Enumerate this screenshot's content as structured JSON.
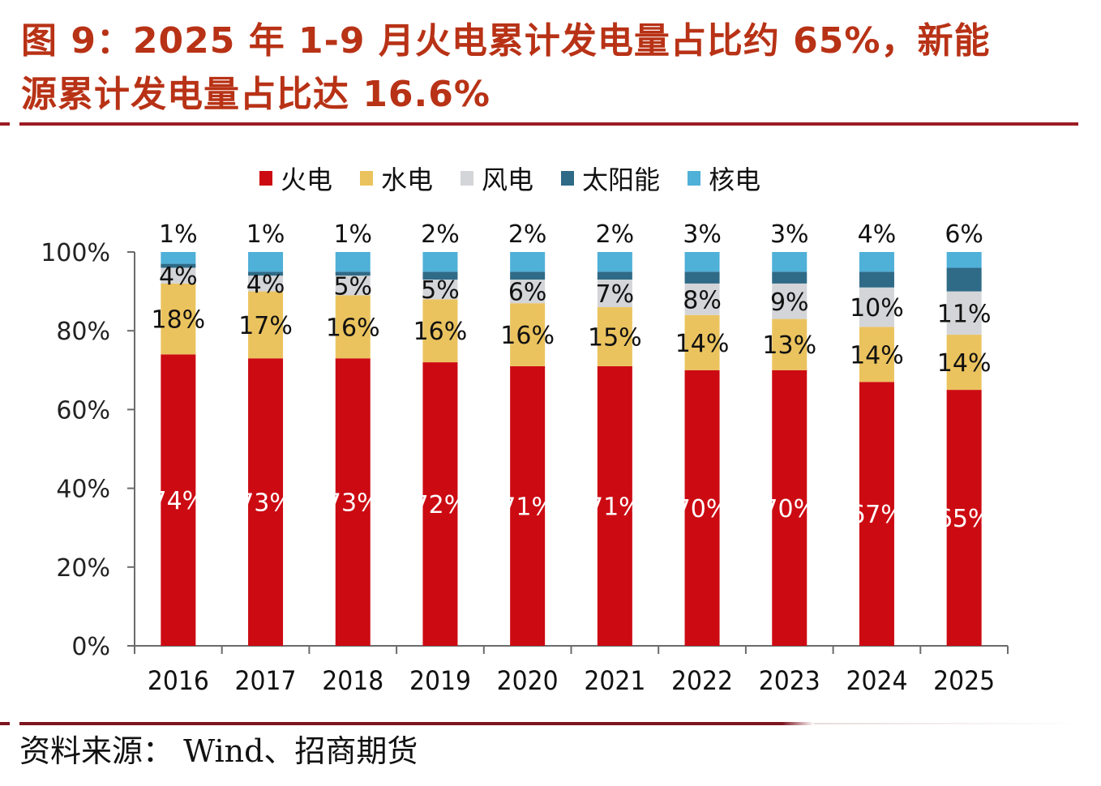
{
  "header": {
    "title_line1": "图 9：2025 年 1-9 月火电累计发电量占比约 65%，新能",
    "title_line2": "源累计发电量占比达 16.6%"
  },
  "footer": {
    "source": "资料来源：  Wind、招商期货"
  },
  "colors": {
    "title": "#b83216",
    "rule": "#9c1b24",
    "thermal": "#cc0a12",
    "hydro": "#ebc35e",
    "wind": "#d4d5d8",
    "solar": "#2f6a87",
    "nuclear": "#4fb0d8"
  },
  "chart_data": {
    "type": "bar",
    "stacked": true,
    "title": "",
    "xlabel": "",
    "ylabel": "",
    "ylim": [
      0,
      100
    ],
    "yticks": [
      "0%",
      "20%",
      "40%",
      "60%",
      "80%",
      "100%"
    ],
    "grid": false,
    "legend_position": "top-center",
    "categories": [
      "2016",
      "2017",
      "2018",
      "2019",
      "2020",
      "2021",
      "2022",
      "2023",
      "2024",
      "2025"
    ],
    "series": [
      {
        "name": "火电",
        "key": "thermal",
        "values": [
          74,
          73,
          73,
          72,
          71,
          71,
          70,
          70,
          67,
          65
        ],
        "labels": [
          "74%",
          "73%",
          "73%",
          "72%",
          "71%",
          "71%",
          "70%",
          "70%",
          "67%",
          "65%"
        ],
        "label_color": "#ffffff"
      },
      {
        "name": "水电",
        "key": "hydro",
        "values": [
          18,
          17,
          16,
          16,
          16,
          15,
          14,
          13,
          14,
          14
        ],
        "labels": [
          "18%",
          "17%",
          "16%",
          "16%",
          "16%",
          "15%",
          "14%",
          "13%",
          "14%",
          "14%"
        ],
        "label_color": "#111111"
      },
      {
        "name": "风电",
        "key": "wind",
        "values": [
          4,
          4,
          5,
          5,
          6,
          7,
          8,
          9,
          10,
          11
        ],
        "labels": [
          "4%",
          "4%",
          "5%",
          "5%",
          "6%",
          "7%",
          "8%",
          "9%",
          "10%",
          "11%"
        ],
        "label_color": "#111111"
      },
      {
        "name": "太阳能",
        "key": "solar",
        "values": [
          1,
          1,
          1,
          2,
          2,
          2,
          3,
          3,
          4,
          6
        ],
        "labels": [
          "1%",
          "1%",
          "1%",
          "2%",
          "2%",
          "2%",
          "3%",
          "3%",
          "4%",
          "6%"
        ],
        "label_color": "#111111",
        "label_position": "top"
      },
      {
        "name": "核电",
        "key": "nuclear",
        "values": [
          3,
          5,
          5,
          5,
          5,
          5,
          5,
          5,
          5,
          4
        ],
        "labels": [],
        "label_color": "#111111"
      }
    ]
  }
}
